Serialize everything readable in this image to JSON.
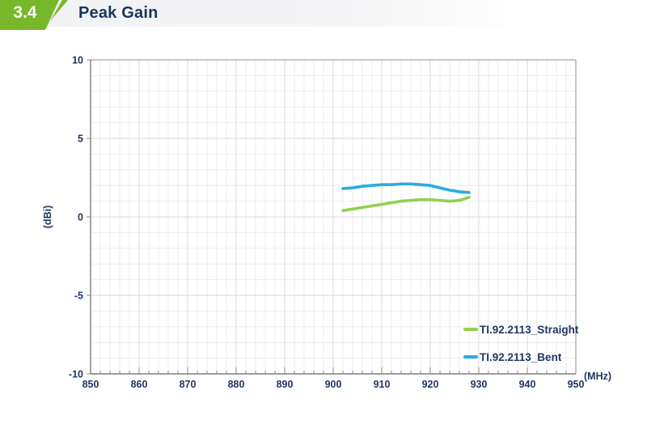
{
  "header": {
    "section_number": "3.4",
    "title": "Peak Gain"
  },
  "colors": {
    "accent_green": "#76B82A",
    "axis_text": "#1F3864",
    "title_text": "#17375E",
    "grid_minor": "#ededed",
    "grid_major": "#d8d8d8",
    "frame": "#a8a8a8",
    "axis": "#7d7d7d",
    "tick": "#8a8a8a"
  },
  "chart_data": {
    "type": "line",
    "title": "Peak Gain",
    "xlabel": "(MHz)",
    "ylabel": "(dBi)",
    "xlim": [
      850,
      950
    ],
    "ylim": [
      -10,
      10
    ],
    "x_major_step": 10,
    "x_minor_step": 2,
    "y_major_step": 5,
    "y_minor_step": 1,
    "grid": true,
    "legend_position": "bottom-right",
    "x_tick_labels": [
      "850",
      "860",
      "870",
      "880",
      "890",
      "900",
      "910",
      "920",
      "930",
      "940",
      "950"
    ],
    "y_tick_labels": [
      "10",
      "5",
      "0",
      "-5",
      "-10"
    ],
    "series": [
      {
        "name": "TI.92.2113_Straight",
        "color": "#92D050",
        "x": [
          902,
          904,
          906,
          908,
          910,
          912,
          914,
          916,
          918,
          920,
          922,
          924,
          926,
          928
        ],
        "y": [
          0.4,
          0.5,
          0.6,
          0.7,
          0.8,
          0.9,
          1.0,
          1.05,
          1.1,
          1.1,
          1.05,
          1.0,
          1.05,
          1.25
        ]
      },
      {
        "name": "TI.92.2113_Bent",
        "color": "#29ABE2",
        "x": [
          902,
          904,
          906,
          908,
          910,
          912,
          914,
          916,
          918,
          920,
          922,
          924,
          926,
          928
        ],
        "y": [
          1.8,
          1.85,
          1.95,
          2.0,
          2.05,
          2.05,
          2.1,
          2.1,
          2.05,
          2.0,
          1.85,
          1.7,
          1.6,
          1.55
        ]
      }
    ]
  }
}
